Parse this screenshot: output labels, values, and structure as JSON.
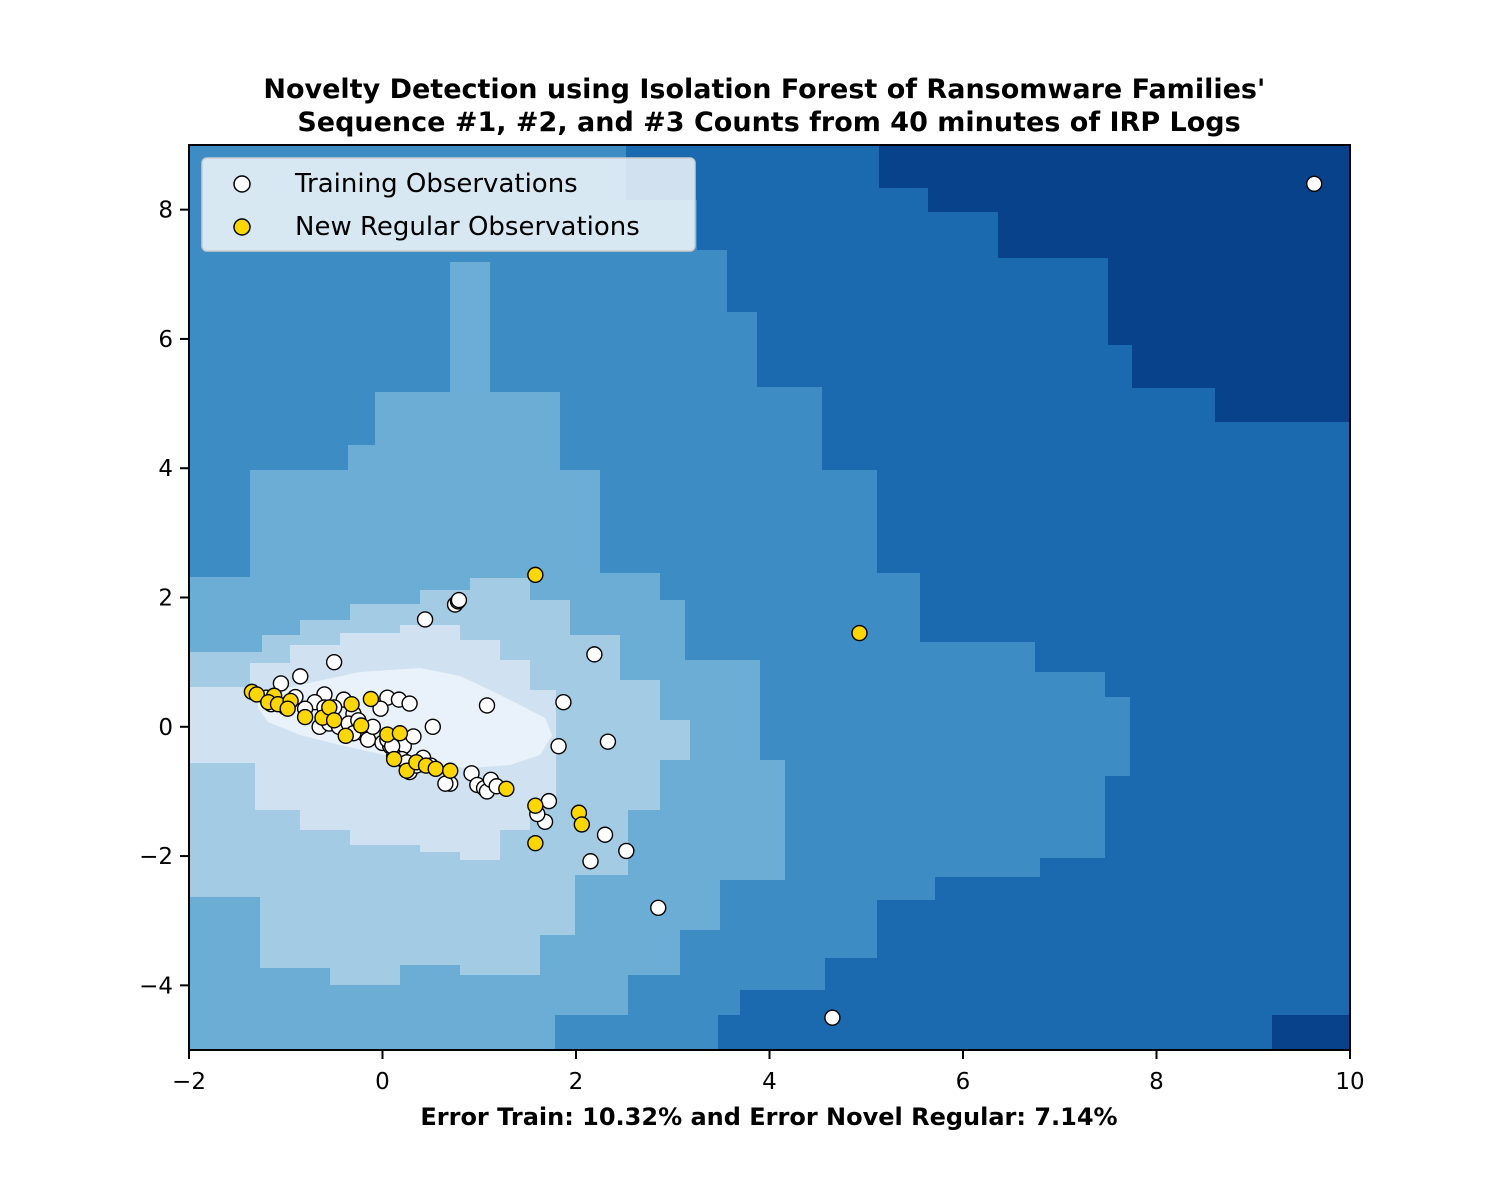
{
  "chart_data": {
    "type": "scatter",
    "title": "Novelty Detection using Isolation Forest of Ransomware Families'\nSequence #1, #2, and #3 Counts from 40 minutes of IRP Logs",
    "xlabel": "Error Train: 10.32% and Error Novel Regular: 7.14%",
    "ylabel": "",
    "xlim": [
      -2,
      10
    ],
    "ylim": [
      -5,
      9
    ],
    "x_ticks": [
      -2,
      0,
      2,
      4,
      6,
      8,
      10
    ],
    "y_ticks": [
      -4,
      -2,
      0,
      2,
      4,
      6,
      8
    ],
    "grid": false,
    "legend_position": "top-left",
    "background": "filled contour of anomaly score (Blues colormap)",
    "colors": {
      "training_fill": "#ffffff",
      "new_regular_fill": "#ffd700",
      "marker_edge": "#000000",
      "contour_levels": [
        "#08428a",
        "#1b69ae",
        "#3d8cc4",
        "#6badd5",
        "#a3cbe3",
        "#d0e1f1",
        "#e9f2fb"
      ]
    },
    "series": [
      {
        "name": "Training Observations",
        "marker_fill": "#ffffff",
        "points": [
          [
            9.63,
            8.4
          ],
          [
            4.65,
            -4.5
          ],
          [
            2.85,
            -2.8
          ],
          [
            2.15,
            -2.08
          ],
          [
            2.52,
            -1.92
          ],
          [
            2.3,
            -1.67
          ],
          [
            1.68,
            -1.47
          ],
          [
            1.72,
            -1.15
          ],
          [
            1.6,
            -1.35
          ],
          [
            1.82,
            -0.3
          ],
          [
            2.33,
            -0.23
          ],
          [
            1.87,
            0.38
          ],
          [
            2.19,
            1.12
          ],
          [
            1.08,
            0.33
          ],
          [
            0.52,
            0.0
          ],
          [
            0.44,
            1.66
          ],
          [
            0.75,
            1.89
          ],
          [
            0.78,
            1.94
          ],
          [
            0.79,
            1.96
          ],
          [
            -0.5,
            1.0
          ],
          [
            -0.85,
            0.78
          ],
          [
            -1.05,
            0.67
          ],
          [
            -1.2,
            0.45
          ],
          [
            -0.9,
            0.46
          ],
          [
            -0.6,
            0.5
          ],
          [
            -0.4,
            0.42
          ],
          [
            0.05,
            0.45
          ],
          [
            0.17,
            0.42
          ],
          [
            0.28,
            0.36
          ],
          [
            -0.02,
            0.28
          ],
          [
            -0.7,
            0.38
          ],
          [
            -0.5,
            0.3
          ],
          [
            -0.3,
            0.2
          ],
          [
            -0.2,
            -0.1
          ],
          [
            -0.15,
            -0.2
          ],
          [
            0.0,
            -0.25
          ],
          [
            0.08,
            -0.3
          ],
          [
            0.15,
            -0.35
          ],
          [
            0.22,
            -0.3
          ],
          [
            0.32,
            -0.15
          ],
          [
            0.12,
            -0.45
          ],
          [
            0.2,
            -0.5
          ],
          [
            0.42,
            -0.48
          ],
          [
            0.5,
            -0.6
          ],
          [
            0.28,
            -0.7
          ],
          [
            0.7,
            -0.88
          ],
          [
            0.65,
            -0.88
          ],
          [
            0.92,
            -0.72
          ],
          [
            0.98,
            -0.9
          ],
          [
            1.05,
            -0.95
          ],
          [
            1.08,
            -1.0
          ],
          [
            1.12,
            -0.82
          ],
          [
            1.18,
            -0.92
          ],
          [
            -0.65,
            0.0
          ],
          [
            -0.55,
            0.05
          ],
          [
            -0.45,
            0.0
          ],
          [
            -0.35,
            0.05
          ],
          [
            -0.8,
            0.28
          ],
          [
            -1.0,
            0.3
          ],
          [
            -1.15,
            0.35
          ],
          [
            -0.1,
            0.0
          ],
          [
            -0.3,
            -0.1
          ],
          [
            0.05,
            -0.2
          ],
          [
            0.1,
            -0.3
          ],
          [
            0.25,
            -0.55
          ],
          [
            0.35,
            -0.6
          ],
          [
            -0.6,
            0.3
          ],
          [
            -0.25,
            0.1
          ]
        ]
      },
      {
        "name": "New Regular Observations",
        "marker_fill": "#ffd700",
        "points": [
          [
            1.58,
            2.35
          ],
          [
            4.93,
            1.45
          ],
          [
            -1.35,
            0.54
          ],
          [
            -1.3,
            0.5
          ],
          [
            -1.12,
            0.48
          ],
          [
            -1.18,
            0.38
          ],
          [
            -1.08,
            0.35
          ],
          [
            -0.95,
            0.4
          ],
          [
            -0.98,
            0.28
          ],
          [
            -0.8,
            0.15
          ],
          [
            -0.62,
            0.14
          ],
          [
            -0.55,
            0.3
          ],
          [
            -0.5,
            0.1
          ],
          [
            -0.32,
            0.35
          ],
          [
            -0.22,
            0.02
          ],
          [
            -0.38,
            -0.14
          ],
          [
            -0.12,
            0.43
          ],
          [
            0.05,
            -0.12
          ],
          [
            0.18,
            -0.1
          ],
          [
            0.12,
            -0.5
          ],
          [
            0.25,
            -0.68
          ],
          [
            0.35,
            -0.55
          ],
          [
            0.45,
            -0.6
          ],
          [
            0.55,
            -0.65
          ],
          [
            0.7,
            -0.68
          ],
          [
            1.28,
            -0.96
          ],
          [
            1.58,
            -1.22
          ],
          [
            1.58,
            -1.8
          ],
          [
            2.03,
            -1.33
          ],
          [
            2.06,
            -1.51
          ]
        ]
      }
    ]
  }
}
